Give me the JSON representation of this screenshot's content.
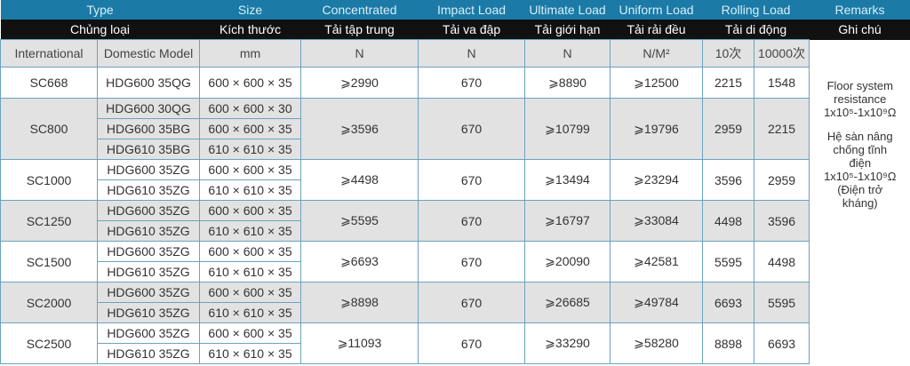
{
  "header": {
    "en": [
      "Type",
      "Size",
      "Concentrated",
      "Impact Load",
      "Ultimate Load",
      "Uniform Load",
      "Rolling Load",
      "Remarks"
    ],
    "vi": [
      "Chủng loại",
      "Kích thước",
      "Tải tập trung",
      "Tải va đập",
      "Tải giới hạn",
      "Tải rải đều",
      "Tải di động",
      "Ghi chú"
    ],
    "units": [
      "International",
      "Domestic Model",
      "mm",
      "N",
      "N",
      "N",
      "N/M²",
      "10次",
      "10000次"
    ]
  },
  "rows": [
    {
      "intl": "SC668",
      "shade": "white",
      "models": [
        [
          "HDG600 35QG",
          "600 × 600 × 35"
        ]
      ],
      "concentrated": "⩾2990",
      "impact": "670",
      "ultimate": "⩾8890",
      "uniform": "⩾12500",
      "rolling10": "2215",
      "rolling10000": "1548"
    },
    {
      "intl": "SC800",
      "shade": "gray",
      "models": [
        [
          "HDG600 30QG",
          "600 × 600 × 30"
        ],
        [
          "HDG600 35BG",
          "600 × 600 × 35"
        ],
        [
          "HDG610 35BG",
          "610 × 610 × 35"
        ]
      ],
      "concentrated": "⩾3596",
      "impact": "670",
      "ultimate": "⩾10799",
      "uniform": "⩾19796",
      "rolling10": "2959",
      "rolling10000": "2215"
    },
    {
      "intl": "SC1000",
      "shade": "white",
      "models": [
        [
          "HDG600 35ZG",
          "600 × 600 × 35"
        ],
        [
          "HDG610 35ZG",
          "610 × 610 × 35"
        ]
      ],
      "concentrated": "⩾4498",
      "impact": "670",
      "ultimate": "⩾13494",
      "uniform": "⩾23294",
      "rolling10": "3596",
      "rolling10000": "2959"
    },
    {
      "intl": "SC1250",
      "shade": "gray",
      "models": [
        [
          "HDG600 35ZG",
          "600 × 600 × 35"
        ],
        [
          "HDG610 35ZG",
          "610 × 610 × 35"
        ]
      ],
      "concentrated": "⩾5595",
      "impact": "670",
      "ultimate": "⩾16797",
      "uniform": "⩾33084",
      "rolling10": "4498",
      "rolling10000": "3596"
    },
    {
      "intl": "SC1500",
      "shade": "white",
      "models": [
        [
          "HDG600 35ZG",
          "600 × 600 × 35"
        ],
        [
          "HDG610 35ZG",
          "610 × 610 × 35"
        ]
      ],
      "concentrated": "⩾6693",
      "impact": "670",
      "ultimate": "⩾20090",
      "uniform": "⩾42581",
      "rolling10": "5595",
      "rolling10000": "4498"
    },
    {
      "intl": "SC2000",
      "shade": "gray",
      "models": [
        [
          "HDG600 35ZG",
          "600 × 600 × 35"
        ],
        [
          "HDG610 35ZG",
          "610 × 610 × 35"
        ]
      ],
      "concentrated": "⩾8898",
      "impact": "670",
      "ultimate": "⩾26685",
      "uniform": "⩾49784",
      "rolling10": "6693",
      "rolling10000": "5595"
    },
    {
      "intl": "SC2500",
      "shade": "white",
      "models": [
        [
          "HDG600 35ZG",
          "600 × 600 × 35"
        ],
        [
          "HDG610 35ZG",
          "610 × 610 × 35"
        ]
      ],
      "concentrated": "⩾11093",
      "impact": "670",
      "ultimate": "⩾33290",
      "uniform": "⩾58280",
      "rolling10": "8898",
      "rolling10000": "6693"
    }
  ],
  "remarks": {
    "en": [
      "Floor system",
      "resistance",
      "1x10⁵-1x10⁹Ω"
    ],
    "vi": [
      "Hệ sàn nâng",
      "chống tĩnh",
      "điện",
      "1x10⁵-1x10⁹Ω",
      "(Điện trở",
      "kháng)"
    ]
  },
  "colors": {
    "header_blue": "#1b7aa6",
    "header_black": "#111111",
    "row_gray": "#e2e2e2",
    "border": "#6aa3bf"
  }
}
